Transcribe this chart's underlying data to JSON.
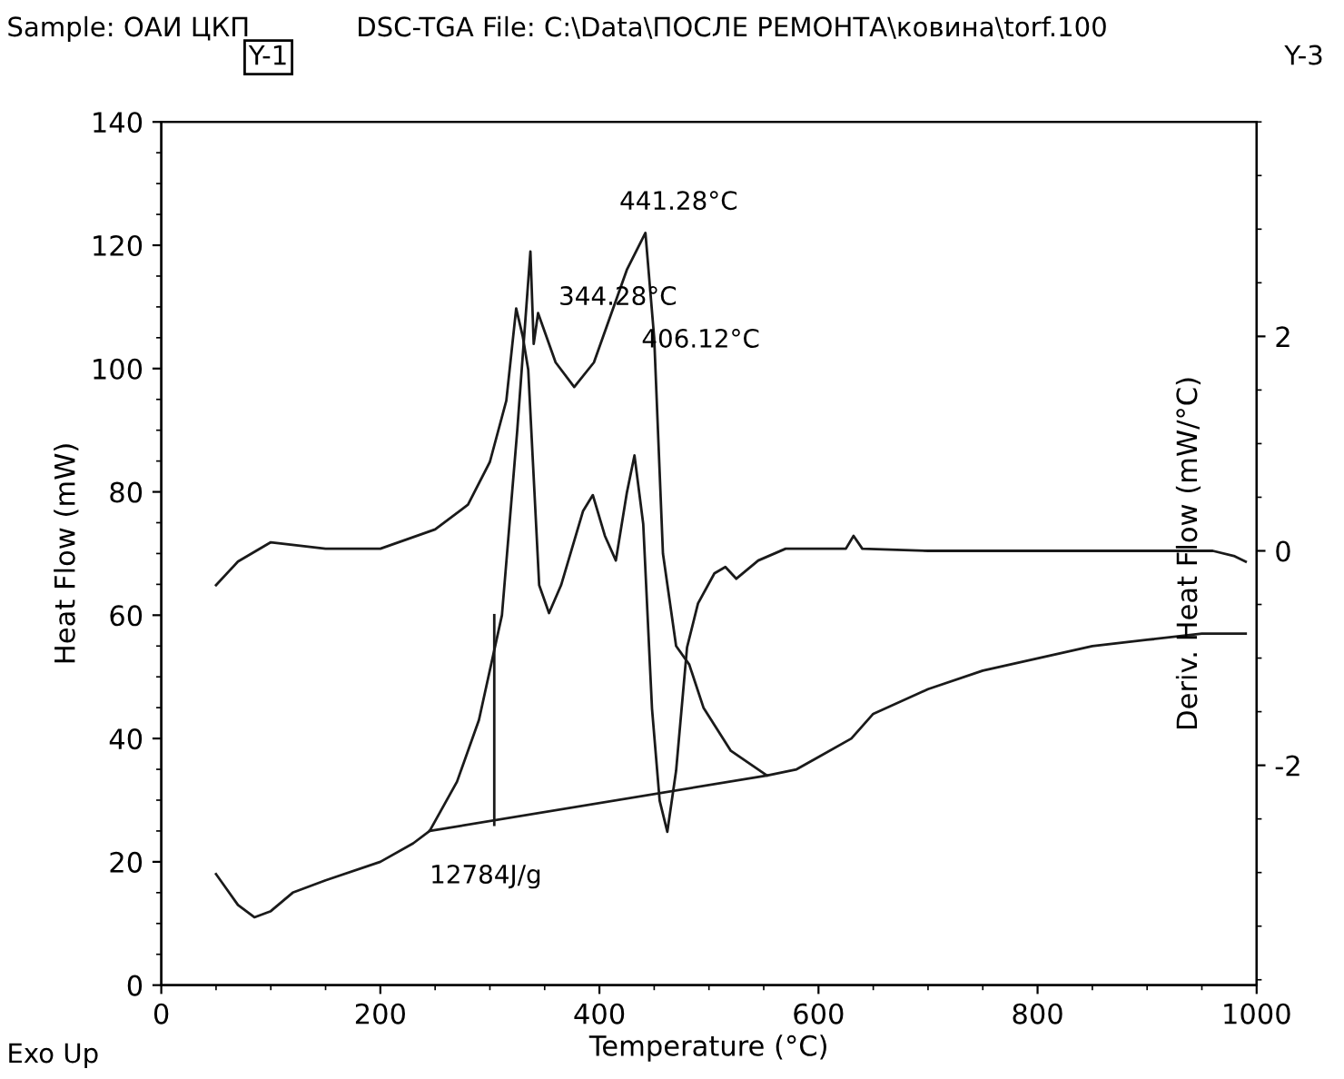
{
  "chart_data": {
    "type": "line",
    "title": "Sample: ОАИ ЦКП",
    "subtitle": "DSC-TGA File: C:\\Data\\ПОСЛЕ РЕМОНТА\\ковина\\torf.100",
    "xlabel": "Temperature (°C)",
    "ylabel": "Heat Flow (mW)",
    "y2label": "Deriv. Heat Flow (mW/°C)",
    "xlim": [
      0,
      1000
    ],
    "xticks": [
      0,
      200,
      400,
      600,
      800,
      1000
    ],
    "ylim": [
      0,
      140
    ],
    "yticks": [
      0,
      20,
      40,
      60,
      80,
      100,
      120,
      140
    ],
    "y2lim": [
      -4.05,
      4.0
    ],
    "y2ticks": [
      -2,
      0,
      2
    ],
    "grid": false,
    "marker": "none",
    "line_style": "solid",
    "series": [
      {
        "color": "#1a1a1a",
        "x": [
          50,
          70,
          85,
          100,
          120,
          150,
          200,
          230,
          245,
          270,
          290,
          311,
          325,
          337,
          340,
          344,
          360,
          377,
          395,
          407,
          425,
          442,
          450,
          458,
          470,
          482,
          495,
          520,
          553,
          580,
          600,
          630,
          650,
          700,
          750,
          800,
          850,
          900,
          950,
          990
        ],
        "values": [
          18,
          13,
          11,
          12,
          15,
          17,
          20,
          23,
          25,
          33,
          43,
          60,
          90,
          119,
          104,
          109,
          101,
          97,
          101,
          107,
          116,
          122,
          105,
          70,
          55,
          52,
          45,
          38,
          34,
          35,
          37,
          40,
          44,
          48,
          51,
          53,
          55,
          56,
          57,
          57
        ]
      },
      {
        "color": "#1a1a1a",
        "axis": "y2",
        "x": [
          50,
          70,
          100,
          150,
          200,
          250,
          280,
          300,
          315,
          324,
          330,
          335,
          345,
          354,
          365,
          385,
          394,
          405,
          415,
          425,
          432,
          440,
          448,
          455,
          462,
          470,
          480,
          490,
          505,
          515,
          525,
          545,
          570,
          600,
          625,
          632,
          640,
          700,
          800,
          900,
          960,
          980,
          990
        ],
        "values": [
          -0.32,
          -0.1,
          0.08,
          0.02,
          0.02,
          0.2,
          0.43,
          0.83,
          1.4,
          2.26,
          2.0,
          1.69,
          -0.32,
          -0.58,
          -0.32,
          0.37,
          0.52,
          0.14,
          -0.09,
          0.54,
          0.89,
          0.25,
          -1.47,
          -2.33,
          -2.62,
          -2.05,
          -0.9,
          -0.49,
          -0.21,
          -0.15,
          -0.26,
          -0.09,
          0.02,
          0.02,
          0.02,
          0.14,
          0.02,
          0.0,
          0.0,
          0.0,
          0.0,
          -0.05,
          -0.1
        ]
      },
      {
        "color": "#1a1a1a",
        "x": [
          245,
          553
        ],
        "values": [
          25,
          34
        ]
      },
      {
        "color": "#1a1a1a",
        "x": [
          304,
          304
        ],
        "values": [
          26,
          60
        ]
      }
    ],
    "annotations": [
      {
        "text": "441.28°C",
        "x": 441.28,
        "y": 122
      },
      {
        "text": "344.28°C",
        "x": 344.28,
        "y": 109
      },
      {
        "text": "406.12°C",
        "x": 406.12,
        "y": 107
      },
      {
        "text": "12784J/g",
        "x": 245,
        "y": 25
      },
      "Y-1",
      "Y-3",
      "Exo Up"
    ]
  }
}
